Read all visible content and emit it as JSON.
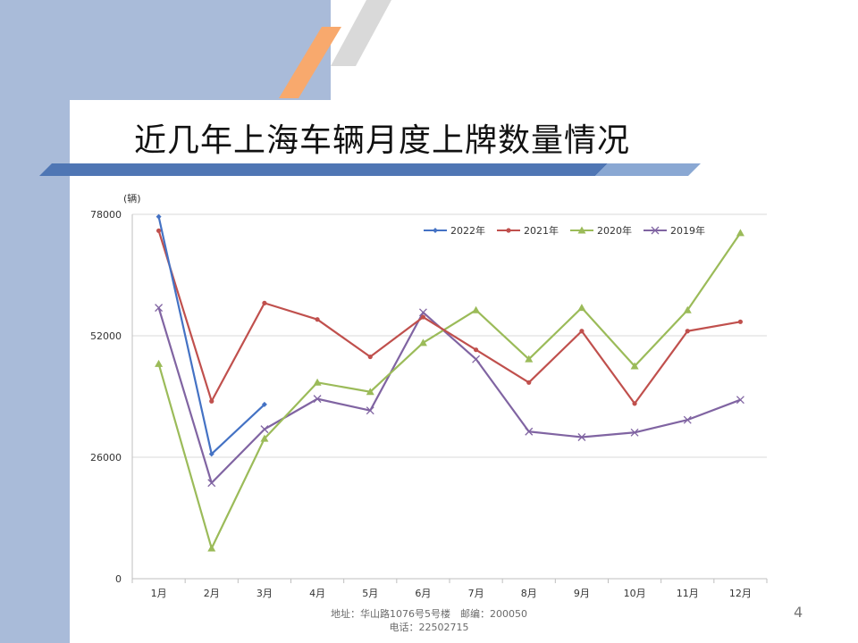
{
  "slide": {
    "title": "近几年上海车辆月度上牌数量情况",
    "footer_address": "地址：华山路1076号5号楼　邮编：200050",
    "footer_phone": "电话：22502715",
    "page_number": "4"
  },
  "theme": {
    "panel_color": "#a9bbd9",
    "stripe_orange": "#f8a96d",
    "stripe_grey": "#d9d9d9",
    "band_dark": "#4f76b4",
    "band_light": "#8aa8d3"
  },
  "chart_data": {
    "type": "line",
    "unit_label": "(辆)",
    "categories": [
      "1月",
      "2月",
      "3月",
      "4月",
      "5月",
      "6月",
      "7月",
      "8月",
      "9月",
      "10月",
      "11月",
      "12月"
    ],
    "ylim": [
      0,
      78000
    ],
    "yticks": [
      0,
      26000,
      52000,
      78000
    ],
    "ytick_labels": [
      "0",
      "26000",
      "52000",
      "78000"
    ],
    "grid": true,
    "legend_position": "top-right",
    "series": [
      {
        "name": "2022年",
        "color": "#4472c4",
        "marker": "diamond",
        "values": [
          77500,
          26700,
          37300,
          null,
          null,
          null,
          null,
          null,
          null,
          null,
          null,
          null
        ]
      },
      {
        "name": "2021年",
        "color": "#c0504d",
        "marker": "circle",
        "values": [
          74500,
          38000,
          59000,
          55500,
          47500,
          56000,
          49000,
          42000,
          53000,
          37500,
          53000,
          55000
        ]
      },
      {
        "name": "2020年",
        "color": "#9bbb59",
        "marker": "triangle",
        "values": [
          46000,
          6500,
          30000,
          42000,
          40000,
          50500,
          57500,
          47000,
          58000,
          45500,
          57500,
          74000
        ]
      },
      {
        "name": "2019年",
        "color": "#8064a2",
        "marker": "x",
        "values": [
          58000,
          20500,
          32000,
          38500,
          36000,
          57000,
          47000,
          31500,
          30300,
          31300,
          34000,
          38300
        ]
      }
    ]
  }
}
